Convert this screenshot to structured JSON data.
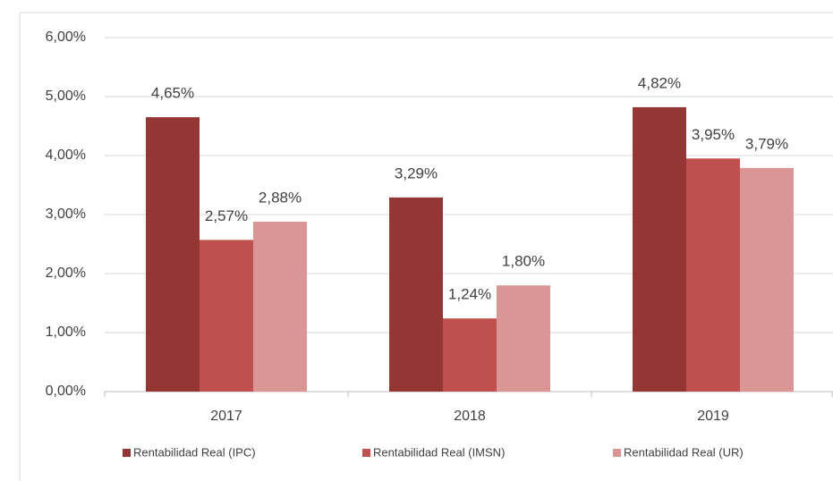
{
  "chart_data": {
    "type": "bar",
    "categories": [
      "2017",
      "2018",
      "2019"
    ],
    "series": [
      {
        "name": "Rentabilidad Real (IPC)",
        "color": "#943634",
        "values": [
          4.65,
          3.29,
          4.82
        ],
        "value_labels": [
          "4,65%",
          "3,29%",
          "4,82%"
        ]
      },
      {
        "name": "Rentabilidad Real (IMSN)",
        "color": "#c0504d",
        "values": [
          2.57,
          1.24,
          3.95
        ],
        "value_labels": [
          "2,57%",
          "1,24%",
          "3,95%"
        ]
      },
      {
        "name": "Rentabilidad Real (UR)",
        "color": "#d99694",
        "values": [
          2.88,
          1.8,
          3.79
        ],
        "value_labels": [
          "2,88%",
          "1,80%",
          "3,79%"
        ]
      }
    ],
    "ylim": [
      0,
      6
    ],
    "yticks": [
      {
        "value": 0,
        "label": "0,00%"
      },
      {
        "value": 1,
        "label": "1,00%"
      },
      {
        "value": 2,
        "label": "2,00%"
      },
      {
        "value": 3,
        "label": "3,00%"
      },
      {
        "value": 4,
        "label": "4,00%"
      },
      {
        "value": 5,
        "label": "5,00%"
      },
      {
        "value": 6,
        "label": "6,00%"
      }
    ],
    "grid": true,
    "legend": "bottom"
  }
}
